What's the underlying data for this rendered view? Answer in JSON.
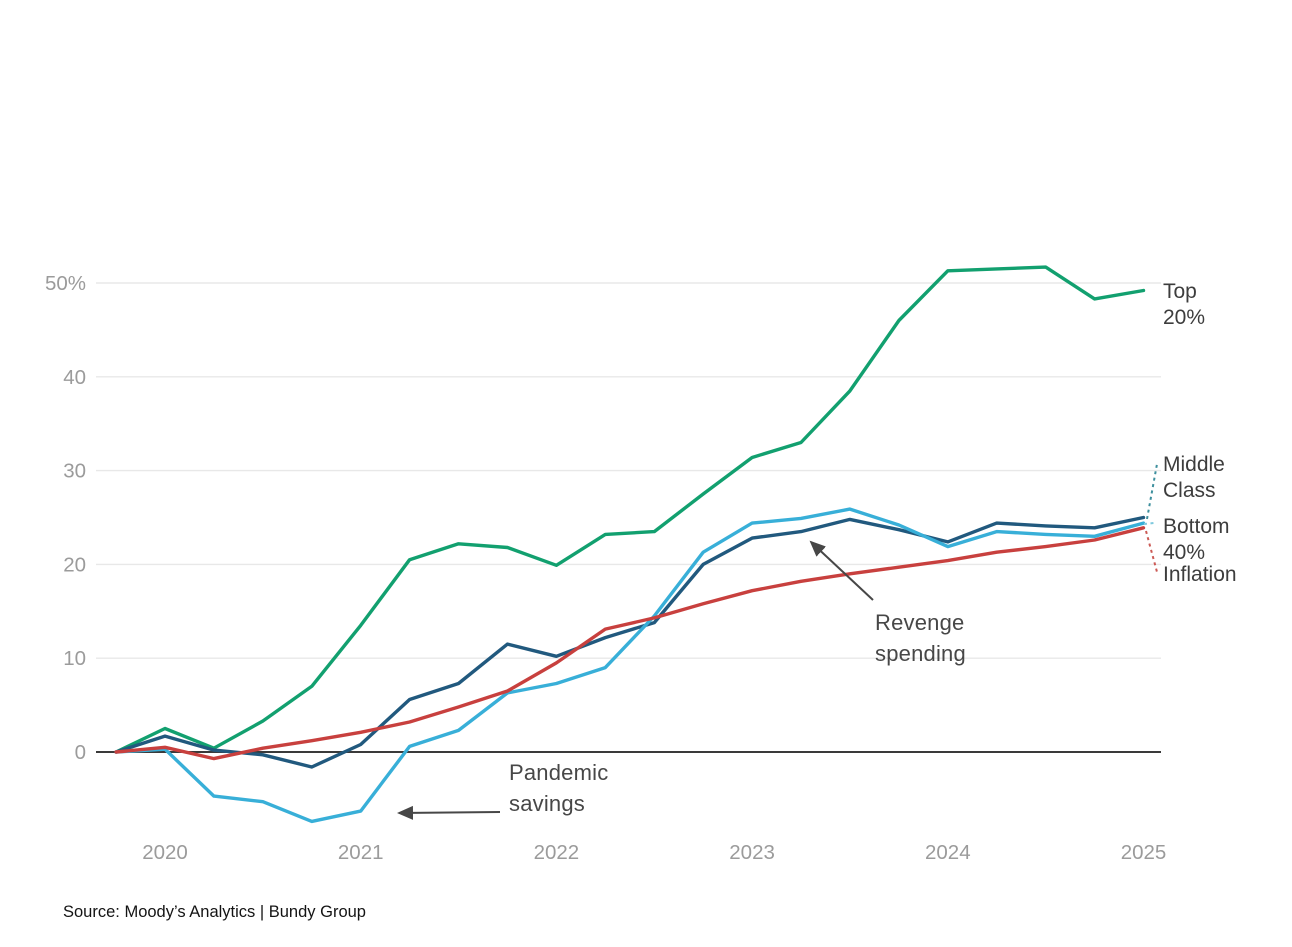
{
  "chart_data": {
    "type": "line",
    "title": "",
    "unit_suffix_top_tick": "%",
    "x": [
      2019.75,
      2020,
      2020.25,
      2020.5,
      2020.75,
      2021,
      2021.25,
      2021.5,
      2021.75,
      2022,
      2022.25,
      2022.5,
      2022.75,
      2023,
      2023.25,
      2023.5,
      2023.75,
      2024,
      2024.25,
      2024.5,
      2024.75,
      2025
    ],
    "series": [
      {
        "name": "Top 20%",
        "color": "#12A06F",
        "values": [
          0,
          2.5,
          0.4,
          3.3,
          7.0,
          13.5,
          20.5,
          22.2,
          21.8,
          19.9,
          23.2,
          23.5,
          27.5,
          31.4,
          33.0,
          38.5,
          46.0,
          51.3,
          51.5,
          51.7,
          48.3,
          49.2
        ]
      },
      {
        "name": "Middle Class",
        "color": "#21597E",
        "values": [
          0,
          1.7,
          0.2,
          -0.3,
          -1.6,
          0.8,
          5.6,
          7.3,
          11.5,
          10.2,
          12.2,
          13.8,
          20.0,
          22.8,
          23.5,
          24.8,
          23.7,
          22.4,
          24.4,
          24.1,
          23.9,
          25.0
        ]
      },
      {
        "name": "Bottom 40%",
        "color": "#38AFD8",
        "values": [
          0,
          0.3,
          -4.7,
          -5.3,
          -7.4,
          -6.3,
          0.6,
          2.3,
          6.3,
          7.3,
          9.0,
          14.5,
          21.3,
          24.4,
          24.9,
          25.9,
          24.2,
          21.9,
          23.5,
          23.2,
          23.0,
          24.4
        ]
      },
      {
        "name": "Inflation",
        "color": "#C8403E",
        "values": [
          0,
          0.5,
          -0.7,
          0.4,
          1.2,
          2.1,
          3.2,
          4.8,
          6.5,
          9.5,
          13.1,
          14.3,
          15.8,
          17.2,
          18.2,
          19.0,
          19.7,
          20.4,
          21.3,
          21.9,
          22.6,
          23.9
        ]
      }
    ],
    "yticks": [
      {
        "value": 0,
        "label": "0"
      },
      {
        "value": 10,
        "label": "10"
      },
      {
        "value": 20,
        "label": "20"
      },
      {
        "value": 30,
        "label": "30"
      },
      {
        "value": 40,
        "label": "40"
      },
      {
        "value": 50,
        "label": "50%"
      }
    ],
    "xticks": [
      {
        "value": 2020,
        "label": "2020"
      },
      {
        "value": 2021,
        "label": "2021"
      },
      {
        "value": 2022,
        "label": "2022"
      },
      {
        "value": 2023,
        "label": "2023"
      },
      {
        "value": 2024,
        "label": "2024"
      },
      {
        "value": 2025,
        "label": "2025"
      }
    ],
    "ylim": [
      -9,
      55
    ],
    "grid": true,
    "legend_position": "right-edge-direct-labels",
    "right_labels": [
      {
        "series": "Top 20%",
        "line1": "Top",
        "line2": "20%"
      },
      {
        "series": "Middle Class",
        "line1": "Middle",
        "line2": "Class",
        "leader_color": "#3D8F9D"
      },
      {
        "series": "Bottom 40%",
        "line1": "Bottom",
        "line2": "40%",
        "leader_color": "#7FC9DE"
      },
      {
        "series": "Inflation",
        "line1": "Inflation",
        "leader_color": "#CC5A55"
      }
    ],
    "annotations": [
      {
        "line1": "Revenge",
        "line2": "spending",
        "arrow_color": "#474747"
      },
      {
        "line1": "Pandemic",
        "line2": "savings",
        "arrow_color": "#474747"
      }
    ]
  },
  "axis": {
    "zero_line_color": "#3A3A3A",
    "tick_label_color": "#9B9B9B",
    "grid_color": "#E8E8E8"
  },
  "source": {
    "text": "Source: Moody’s Analytics | Bundy Group"
  }
}
